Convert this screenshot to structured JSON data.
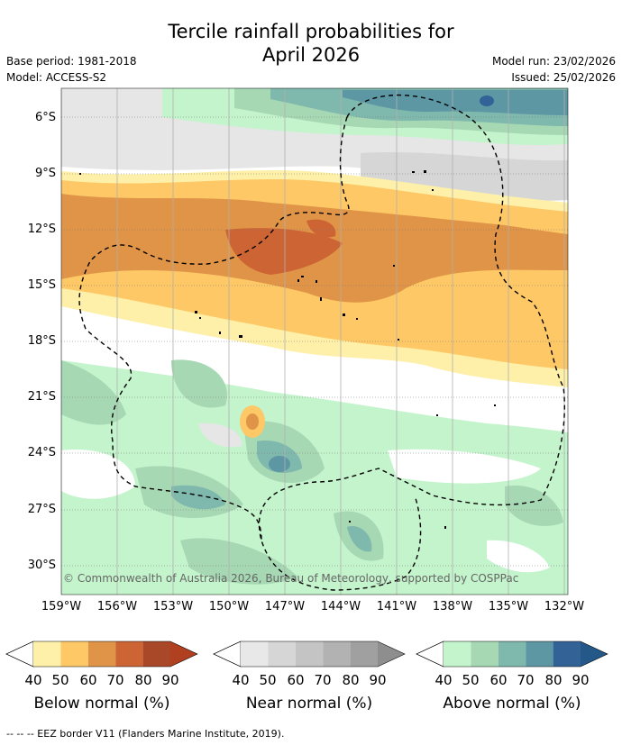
{
  "title_line1": "Tercile rainfall probabilities for",
  "title_line2": "April 2026",
  "base_period": "Base period: 1981-2018",
  "model": "Model: ACCESS-S2",
  "model_run": "Model run: 23/02/2026",
  "issued": "Issued: 25/02/2026",
  "copyright": "© Commonwealth of Australia 2026, Bureau of Meteorology, supported by COSPPac",
  "lat_labels": [
    "6°S",
    "9°S",
    "12°S",
    "15°S",
    "18°S",
    "21°S",
    "24°S",
    "27°S",
    "30°S"
  ],
  "lon_labels": [
    "159°W",
    "156°W",
    "153°W",
    "150°W",
    "147°W",
    "144°W",
    "141°W",
    "138°W",
    "135°W",
    "132°W"
  ],
  "colorbars": [
    {
      "title": "Below normal (%)",
      "ticks": [
        "40",
        "50",
        "60",
        "70",
        "80",
        "90"
      ],
      "colors": [
        "#fef0a8",
        "#fdc865",
        "#e09447",
        "#cd6434",
        "#a84828",
        "#b04020"
      ]
    },
    {
      "title": "Near normal (%)",
      "ticks": [
        "40",
        "50",
        "60",
        "70",
        "80",
        "90"
      ],
      "colors": [
        "#e8e8e8",
        "#d6d6d6",
        "#c4c4c4",
        "#b2b2b2",
        "#a0a0a0",
        "#8e8e8e"
      ]
    },
    {
      "title": "Above normal (%)",
      "ticks": [
        "40",
        "50",
        "60",
        "70",
        "80",
        "90"
      ],
      "colors": [
        "#c4f4cc",
        "#a6d8b4",
        "#7fb8ac",
        "#5e97a4",
        "#326296",
        "#245888"
      ]
    }
  ],
  "eez_legend": "--  --  -- EEZ border V11 (Flanders Marine Institute, 2019)."
}
